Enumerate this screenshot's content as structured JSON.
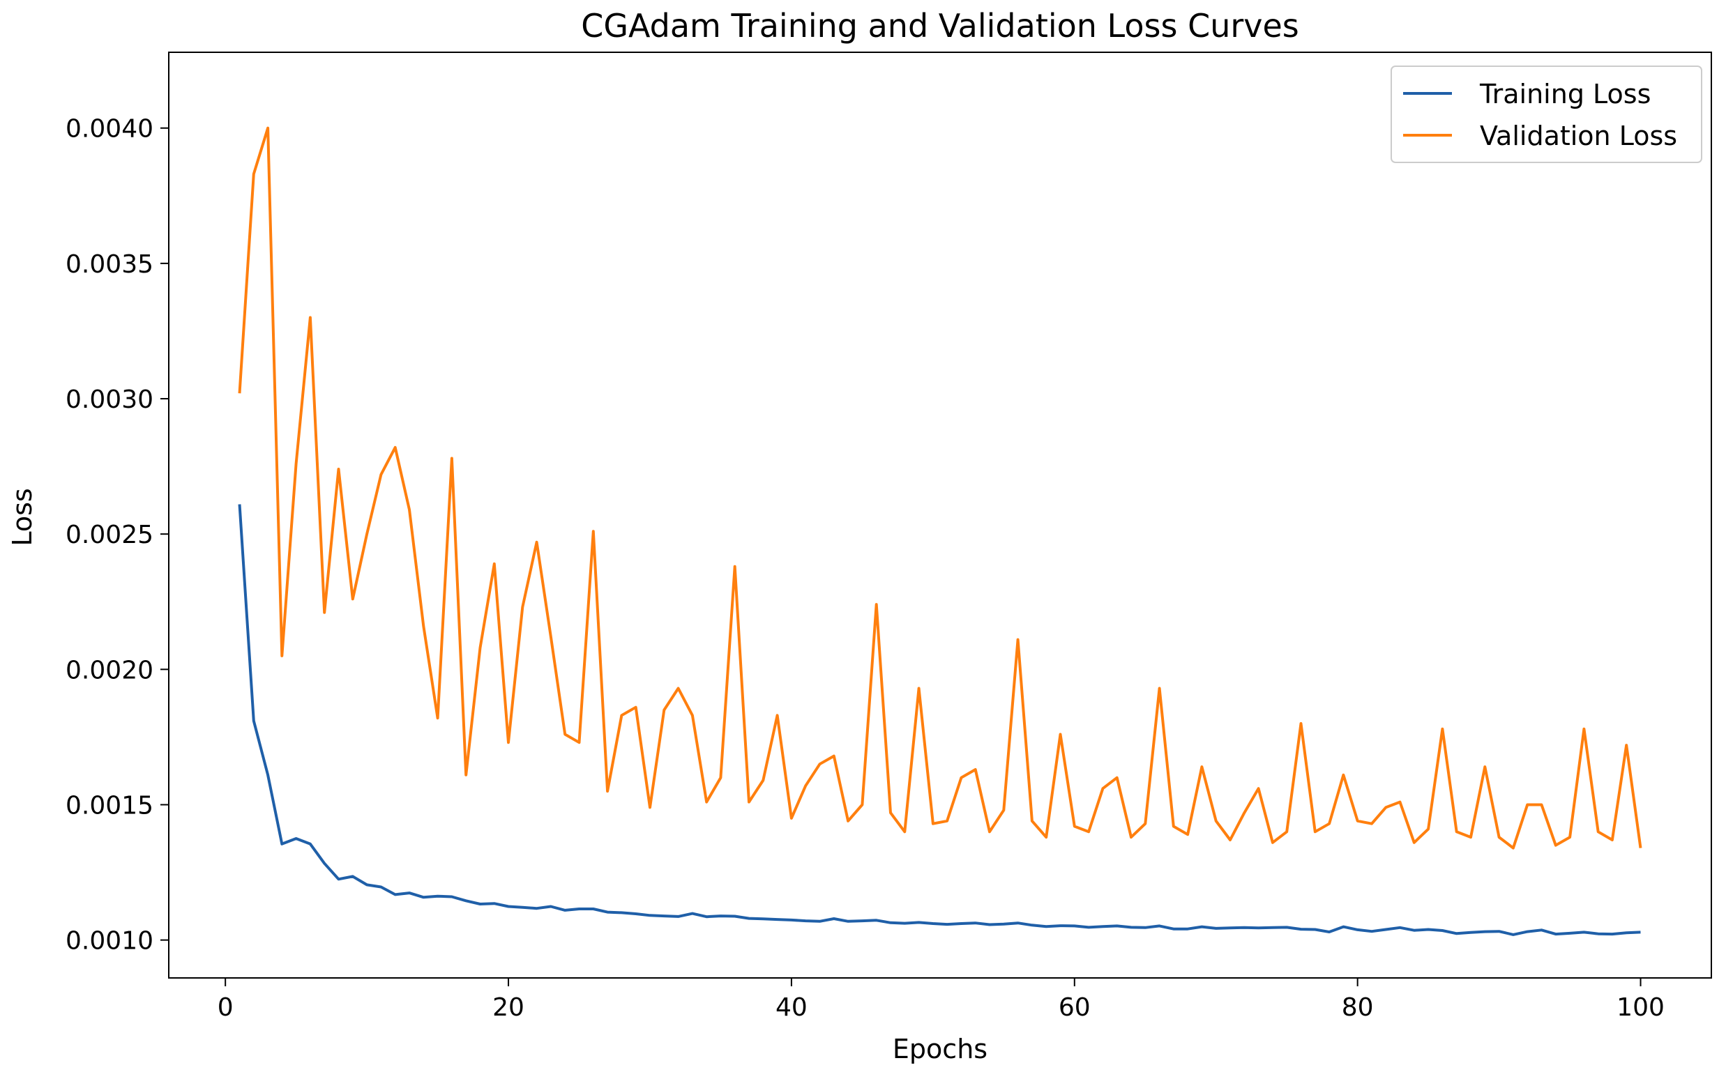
{
  "chart_data": {
    "type": "line",
    "title": "CGAdam Training and Validation Loss Curves",
    "xlabel": "Epochs",
    "ylabel": "Loss",
    "xlim": [
      -4,
      105
    ],
    "ylim": [
      0.00086,
      0.00428
    ],
    "xticks": [
      0,
      20,
      40,
      60,
      80,
      100
    ],
    "xtick_labels": [
      "0",
      "20",
      "40",
      "60",
      "80",
      "100"
    ],
    "yticks": [
      0.001,
      0.0015,
      0.002,
      0.0025,
      0.003,
      0.0035,
      0.004
    ],
    "ytick_labels": [
      "0.0010",
      "0.0015",
      "0.0020",
      "0.0025",
      "0.0030",
      "0.0035",
      "0.0040"
    ],
    "grid": false,
    "legend_position": "top-right",
    "series": [
      {
        "name": "Training Loss",
        "color": "#1f5fa8",
        "values": [
          0.00261,
          0.00181,
          0.00161,
          0.001355,
          0.001375,
          0.001355,
          0.001283,
          0.001225,
          0.001235,
          0.001204,
          0.001196,
          0.001168,
          0.001174,
          0.001158,
          0.001162,
          0.00116,
          0.001145,
          0.001133,
          0.001135,
          0.001124,
          0.001121,
          0.001117,
          0.001124,
          0.00111,
          0.001115,
          0.001115,
          0.001103,
          0.001101,
          0.001097,
          0.001091,
          0.001089,
          0.001087,
          0.001098,
          0.001086,
          0.001089,
          0.001088,
          0.00108,
          0.001078,
          0.001076,
          0.001074,
          0.001071,
          0.001069,
          0.001079,
          0.001069,
          0.001071,
          0.001073,
          0.001064,
          0.001062,
          0.001065,
          0.001061,
          0.001058,
          0.001061,
          0.001063,
          0.001057,
          0.001059,
          0.001063,
          0.001055,
          0.00105,
          0.001053,
          0.001052,
          0.001047,
          0.00105,
          0.001052,
          0.001047,
          0.001046,
          0.001052,
          0.001041,
          0.001041,
          0.001049,
          0.001043,
          0.001045,
          0.001046,
          0.001045,
          0.001046,
          0.001047,
          0.00104,
          0.001039,
          0.00103,
          0.001049,
          0.001038,
          0.001032,
          0.001039,
          0.001046,
          0.001036,
          0.001039,
          0.001035,
          0.001024,
          0.001028,
          0.001031,
          0.001032,
          0.00102,
          0.001031,
          0.001037,
          0.001022,
          0.001025,
          0.001029,
          0.001023,
          0.001022,
          0.001027,
          0.001029
        ]
      },
      {
        "name": "Validation Loss",
        "color": "#ff7f0e",
        "values": [
          0.00302,
          0.00383,
          0.004,
          0.00205,
          0.00276,
          0.0033,
          0.00221,
          0.00274,
          0.00226,
          0.0025,
          0.00272,
          0.00282,
          0.00259,
          0.00216,
          0.00182,
          0.00278,
          0.00161,
          0.00208,
          0.00239,
          0.00173,
          0.00223,
          0.00247,
          0.00212,
          0.00176,
          0.00173,
          0.00251,
          0.00155,
          0.00183,
          0.00186,
          0.00149,
          0.00185,
          0.00193,
          0.00183,
          0.00151,
          0.0016,
          0.00238,
          0.00151,
          0.00159,
          0.00183,
          0.00145,
          0.00157,
          0.00165,
          0.00168,
          0.00144,
          0.0015,
          0.00224,
          0.00147,
          0.0014,
          0.00193,
          0.00143,
          0.00144,
          0.0016,
          0.00163,
          0.0014,
          0.00148,
          0.00211,
          0.00144,
          0.00138,
          0.00176,
          0.00142,
          0.0014,
          0.00156,
          0.0016,
          0.00138,
          0.00143,
          0.00193,
          0.00142,
          0.00139,
          0.00164,
          0.00144,
          0.00137,
          0.00147,
          0.00156,
          0.00136,
          0.0014,
          0.0018,
          0.0014,
          0.00143,
          0.00161,
          0.00144,
          0.00143,
          0.00149,
          0.00151,
          0.00136,
          0.00141,
          0.00178,
          0.0014,
          0.00138,
          0.00164,
          0.00138,
          0.00134,
          0.0015,
          0.0015,
          0.00135,
          0.00138,
          0.00178,
          0.0014,
          0.00137,
          0.00172,
          0.00134
        ]
      }
    ]
  }
}
